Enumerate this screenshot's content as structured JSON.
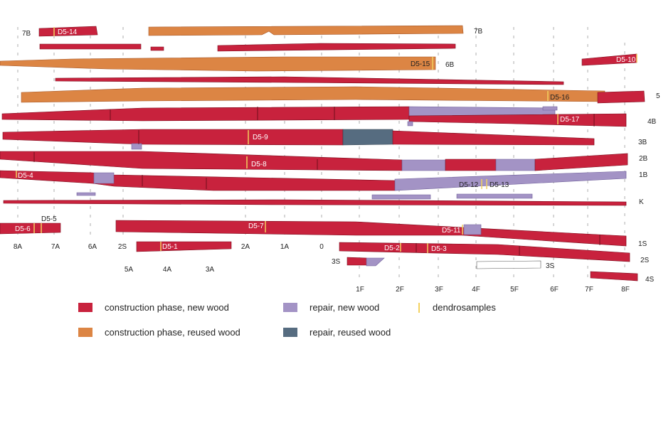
{
  "colors": {
    "construction_new": "#c8223d",
    "construction_reused": "#dc8544",
    "repair_new": "#a393c5",
    "repair_reused": "#566c80",
    "dendro": "#f3d15f",
    "outline": "#7a0e1e"
  },
  "row_labels": [
    "7B",
    "7B",
    "6B",
    "5",
    "4B",
    "3B",
    "2B",
    "1B",
    "K",
    "1S",
    "2S",
    "3S",
    "3S",
    "4S"
  ],
  "station_labels_top": [
    "8A",
    "7A",
    "6A",
    "2S",
    "2A",
    "1A",
    "0"
  ],
  "station_labels_mid": [
    "5A",
    "4A",
    "3A"
  ],
  "station_labels_bottom": [
    "1F",
    "2F",
    "3F",
    "4F",
    "5F",
    "6F",
    "7F",
    "8F"
  ],
  "samples": [
    "D5-14",
    "D5-15",
    "D5-10",
    "D5-16",
    "D5-17",
    "D5-9",
    "D5-8",
    "D5-4",
    "D5-12",
    "D5-13",
    "D5-5",
    "D5-6",
    "D5-7",
    "D5-11",
    "D5-1",
    "D5-2",
    "D5-3"
  ],
  "legend": {
    "construction_new": "construction phase, new wood",
    "construction_reused": "construction phase, reused wood",
    "repair_new": "repair, new wood",
    "repair_reused": "repair, reused wood",
    "dendro": "dendrosamples"
  }
}
